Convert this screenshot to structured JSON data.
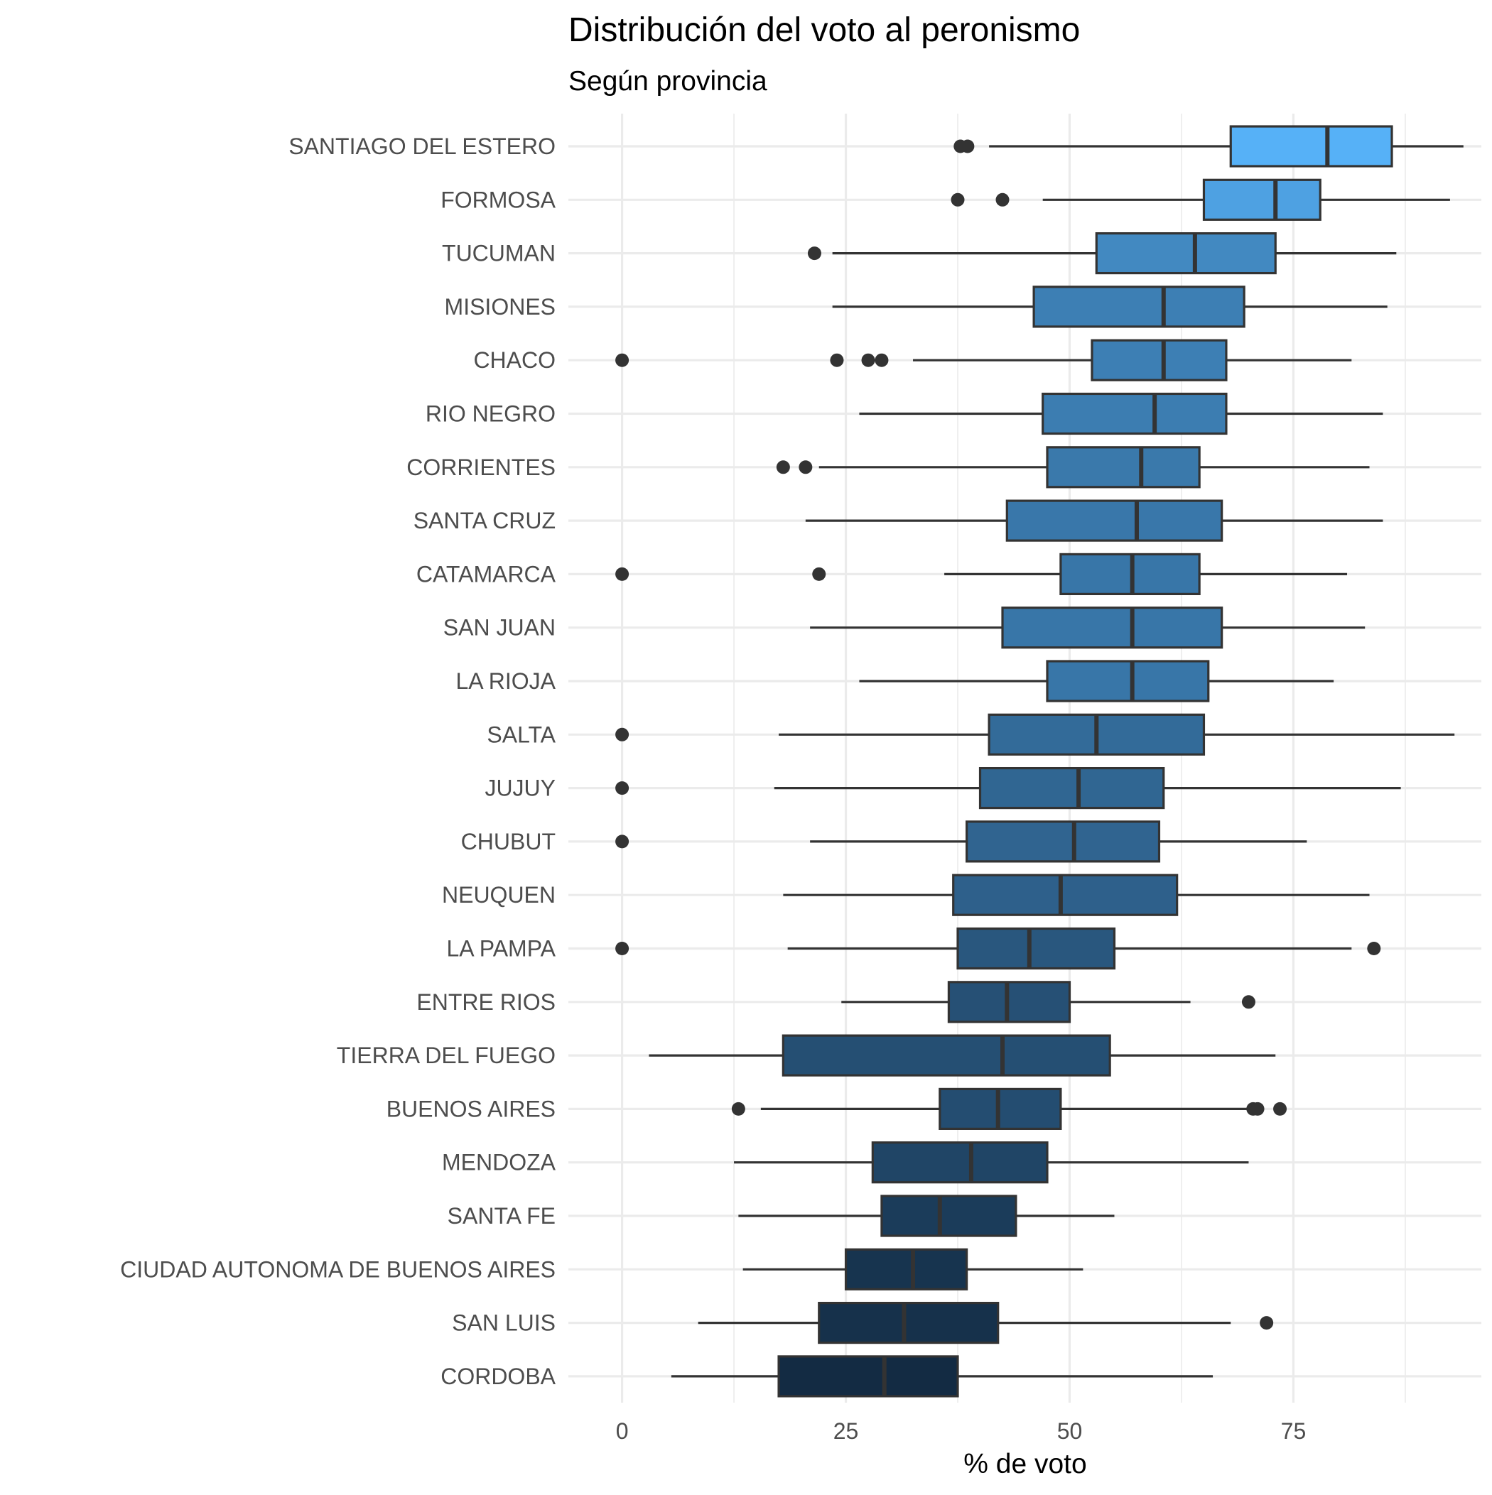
{
  "chart_data": {
    "type": "boxplot",
    "title": "Distribución del voto al peronismo",
    "subtitle": "Según provincia",
    "xlabel": "% de voto",
    "ylabel": "",
    "xlim": [
      -6,
      96
    ],
    "x_ticks": [
      0,
      25,
      50,
      75
    ],
    "grid": true,
    "legend": "none",
    "fill_low": "#132b43",
    "fill_high": "#56b1f7",
    "median_low": 29.3,
    "median_high": 78.8,
    "categories": [
      {
        "label": "SANTIAGO DEL ESTERO",
        "whisker_low": 41.0,
        "q1": 68.0,
        "median": 78.8,
        "q3": 86.0,
        "whisker_high": 94.0,
        "outliers": [
          37.8,
          38.6
        ]
      },
      {
        "label": "FORMOSA",
        "whisker_low": 47.0,
        "q1": 65.0,
        "median": 73.0,
        "q3": 78.0,
        "whisker_high": 92.5,
        "outliers": [
          37.5,
          42.5
        ]
      },
      {
        "label": "TUCUMAN",
        "whisker_low": 23.5,
        "q1": 53.0,
        "median": 64.0,
        "q3": 73.0,
        "whisker_high": 86.5,
        "outliers": [
          21.5
        ]
      },
      {
        "label": "MISIONES",
        "whisker_low": 23.5,
        "q1": 46.0,
        "median": 60.5,
        "q3": 69.5,
        "whisker_high": 85.5,
        "outliers": []
      },
      {
        "label": "CHACO",
        "whisker_low": 32.5,
        "q1": 52.5,
        "median": 60.5,
        "q3": 67.5,
        "whisker_high": 81.5,
        "outliers": [
          0,
          24.0,
          27.5,
          29.0
        ]
      },
      {
        "label": "RIO NEGRO",
        "whisker_low": 26.5,
        "q1": 47.0,
        "median": 59.5,
        "q3": 67.5,
        "whisker_high": 85.0,
        "outliers": []
      },
      {
        "label": "CORRIENTES",
        "whisker_low": 22.0,
        "q1": 47.5,
        "median": 58.0,
        "q3": 64.5,
        "whisker_high": 83.5,
        "outliers": [
          18.0,
          20.5
        ]
      },
      {
        "label": "SANTA CRUZ",
        "whisker_low": 20.5,
        "q1": 43.0,
        "median": 57.5,
        "q3": 67.0,
        "whisker_high": 85.0,
        "outliers": []
      },
      {
        "label": "CATAMARCA",
        "whisker_low": 36.0,
        "q1": 49.0,
        "median": 57.0,
        "q3": 64.5,
        "whisker_high": 81.0,
        "outliers": [
          0,
          22.0
        ]
      },
      {
        "label": "SAN JUAN",
        "whisker_low": 21.0,
        "q1": 42.5,
        "median": 57.0,
        "q3": 67.0,
        "whisker_high": 83.0,
        "outliers": []
      },
      {
        "label": "LA RIOJA",
        "whisker_low": 26.5,
        "q1": 47.5,
        "median": 57.0,
        "q3": 65.5,
        "whisker_high": 79.5,
        "outliers": []
      },
      {
        "label": "SALTA",
        "whisker_low": 17.5,
        "q1": 41.0,
        "median": 53.0,
        "q3": 65.0,
        "whisker_high": 93.0,
        "outliers": [
          0
        ]
      },
      {
        "label": "JUJUY",
        "whisker_low": 17.0,
        "q1": 40.0,
        "median": 51.0,
        "q3": 60.5,
        "whisker_high": 87.0,
        "outliers": [
          0
        ]
      },
      {
        "label": "CHUBUT",
        "whisker_low": 21.0,
        "q1": 38.5,
        "median": 50.5,
        "q3": 60.0,
        "whisker_high": 76.5,
        "outliers": [
          0
        ]
      },
      {
        "label": "NEUQUEN",
        "whisker_low": 18.0,
        "q1": 37.0,
        "median": 49.0,
        "q3": 62.0,
        "whisker_high": 83.5,
        "outliers": []
      },
      {
        "label": "LA PAMPA",
        "whisker_low": 18.5,
        "q1": 37.5,
        "median": 45.5,
        "q3": 55.0,
        "whisker_high": 81.5,
        "outliers": [
          0,
          84.0
        ]
      },
      {
        "label": "ENTRE RIOS",
        "whisker_low": 24.5,
        "q1": 36.5,
        "median": 43.0,
        "q3": 50.0,
        "whisker_high": 63.5,
        "outliers": [
          70.0
        ]
      },
      {
        "label": "TIERRA DEL FUEGO",
        "whisker_low": 3.0,
        "q1": 18.0,
        "median": 42.5,
        "q3": 54.5,
        "whisker_high": 73.0,
        "outliers": []
      },
      {
        "label": "BUENOS AIRES",
        "whisker_low": 15.5,
        "q1": 35.5,
        "median": 42.0,
        "q3": 49.0,
        "whisker_high": 70.0,
        "outliers": [
          13.0,
          70.5,
          71.0,
          73.5
        ]
      },
      {
        "label": "MENDOZA",
        "whisker_low": 12.5,
        "q1": 28.0,
        "median": 39.0,
        "q3": 47.5,
        "whisker_high": 70.0,
        "outliers": []
      },
      {
        "label": "SANTA FE",
        "whisker_low": 13.0,
        "q1": 29.0,
        "median": 35.5,
        "q3": 44.0,
        "whisker_high": 55.0,
        "outliers": []
      },
      {
        "label": "CIUDAD AUTONOMA DE BUENOS AIRES",
        "whisker_low": 13.5,
        "q1": 25.0,
        "median": 32.5,
        "q3": 38.5,
        "whisker_high": 51.5,
        "outliers": []
      },
      {
        "label": "SAN LUIS",
        "whisker_low": 8.5,
        "q1": 22.0,
        "median": 31.5,
        "q3": 42.0,
        "whisker_high": 68.0,
        "outliers": [
          72.0
        ]
      },
      {
        "label": "CORDOBA",
        "whisker_low": 5.5,
        "q1": 17.5,
        "median": 29.3,
        "q3": 37.5,
        "whisker_high": 66.0,
        "outliers": []
      }
    ]
  }
}
